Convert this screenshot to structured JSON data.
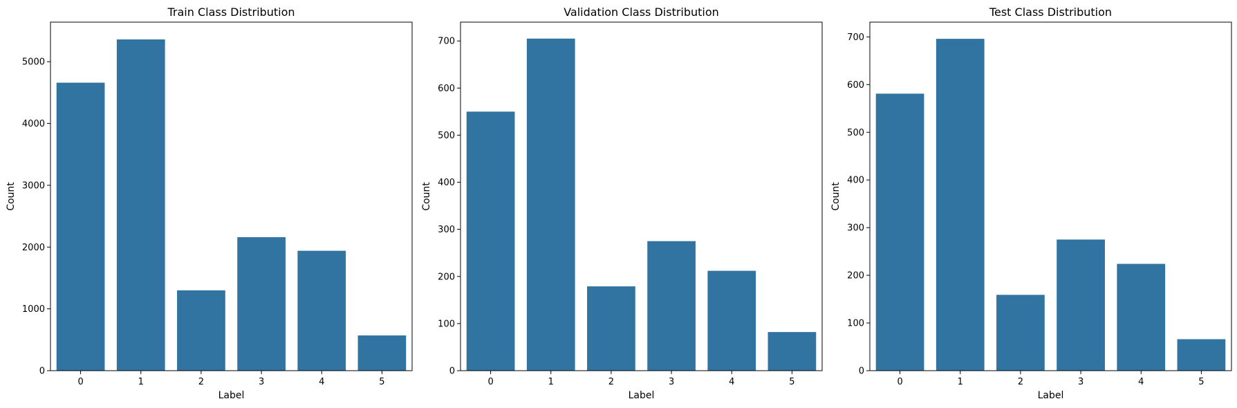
{
  "colors": {
    "bar": "#3274a1",
    "background": "#ffffff",
    "axis": "#000000"
  },
  "chart_data": [
    {
      "type": "bar",
      "title": "Train Class Distribution",
      "xlabel": "Label",
      "ylabel": "Count",
      "categories": [
        "0",
        "1",
        "2",
        "3",
        "4",
        "5"
      ],
      "values": [
        4660,
        5360,
        1300,
        2160,
        1940,
        570
      ],
      "ylim": [
        0,
        5640
      ],
      "yticks": [
        0,
        1000,
        2000,
        3000,
        4000,
        5000
      ],
      "ytick_labels": [
        "0",
        "1000",
        "2000",
        "3000",
        "4000",
        "5000"
      ],
      "grid": false
    },
    {
      "type": "bar",
      "title": "Validation Class Distribution",
      "xlabel": "Label",
      "ylabel": "Count",
      "categories": [
        "0",
        "1",
        "2",
        "3",
        "4",
        "5"
      ],
      "values": [
        550,
        705,
        179,
        275,
        212,
        82
      ],
      "ylim": [
        0,
        740
      ],
      "yticks": [
        0,
        100,
        200,
        300,
        400,
        500,
        600,
        700
      ],
      "ytick_labels": [
        "0",
        "100",
        "200",
        "300",
        "400",
        "500",
        "600",
        "700"
      ],
      "grid": false
    },
    {
      "type": "bar",
      "title": "Test Class Distribution",
      "xlabel": "Label",
      "ylabel": "Count",
      "categories": [
        "0",
        "1",
        "2",
        "3",
        "4",
        "5"
      ],
      "values": [
        581,
        696,
        159,
        275,
        224,
        66
      ],
      "ylim": [
        0,
        731
      ],
      "yticks": [
        0,
        100,
        200,
        300,
        400,
        500,
        600,
        700
      ],
      "ytick_labels": [
        "0",
        "100",
        "200",
        "300",
        "400",
        "500",
        "600",
        "700"
      ],
      "grid": false
    }
  ]
}
